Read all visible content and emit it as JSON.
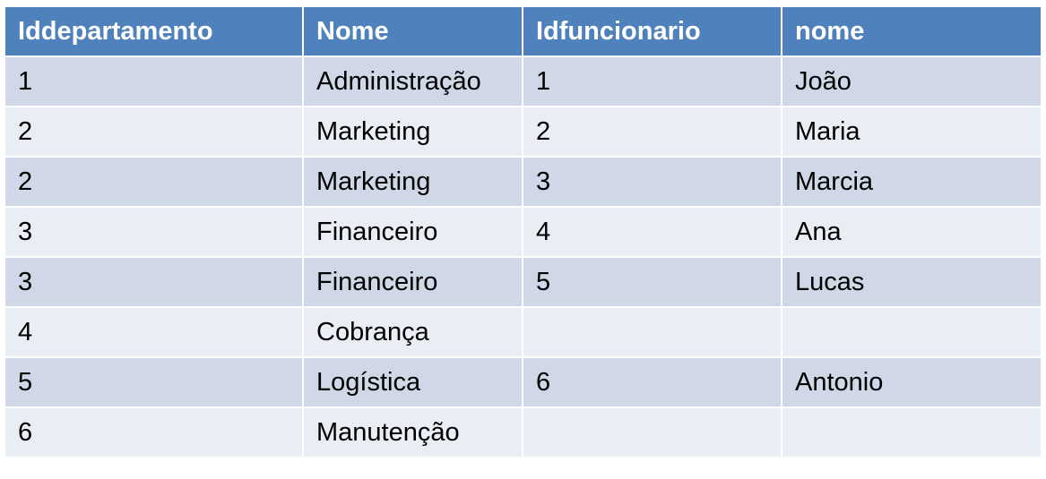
{
  "table": {
    "headers": [
      "Iddepartamento",
      "Nome",
      "Idfuncionario",
      "nome"
    ],
    "rows": [
      [
        "1",
        "Administração",
        "1",
        "João"
      ],
      [
        "2",
        "Marketing",
        "2",
        "Maria"
      ],
      [
        "2",
        "Marketing",
        "3",
        "Marcia"
      ],
      [
        "3",
        "Financeiro",
        "4",
        "Ana"
      ],
      [
        "3",
        "Financeiro",
        "5",
        "Lucas"
      ],
      [
        "4",
        "Cobrança",
        "",
        ""
      ],
      [
        "5",
        "Logística",
        "6",
        "Antonio"
      ],
      [
        "6",
        "Manutenção",
        "",
        ""
      ]
    ]
  },
  "colors": {
    "header_bg": "#4f81bd",
    "row_odd_bg": "#d0d8e8",
    "row_even_bg": "#e9edf4"
  }
}
